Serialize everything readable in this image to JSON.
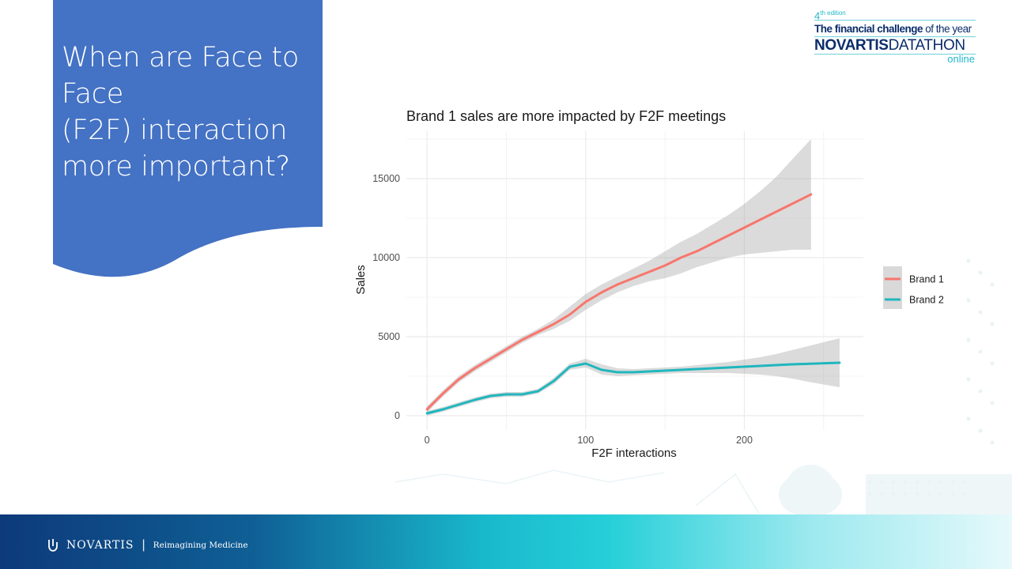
{
  "slide": {
    "title": "When are Face to\nFace\n(F2F)  interaction\nmore important?",
    "banner_color": "#4472c4"
  },
  "logo": {
    "edition": "4",
    "edition_suffix": "th edition",
    "tagline_bold": "The financial challenge",
    "tagline_rest": " of the year",
    "brand_bold": "NOVARTIS",
    "brand_rest": "DATATHON",
    "online": "online"
  },
  "footer": {
    "company": "NOVARTIS",
    "slogan": "Reimagining Medicine"
  },
  "chart_data": {
    "type": "line",
    "title": "Brand 1 sales are more impacted by F2F meetings",
    "xlabel": "F2F interactions",
    "ylabel": "Sales",
    "xlim": [
      -13,
      275
    ],
    "ylim": [
      -900,
      18000
    ],
    "x_ticks": [
      0,
      100,
      200
    ],
    "y_ticks": [
      0,
      5000,
      10000,
      15000
    ],
    "grid": true,
    "legend_position": "right",
    "series": [
      {
        "name": "Brand 1",
        "color": "#f8766d",
        "points": [
          [
            0,
            400
          ],
          [
            10,
            1400
          ],
          [
            20,
            2300
          ],
          [
            30,
            3000
          ],
          [
            40,
            3600
          ],
          [
            50,
            4200
          ],
          [
            60,
            4800
          ],
          [
            70,
            5300
          ],
          [
            80,
            5800
          ],
          [
            90,
            6400
          ],
          [
            100,
            7200
          ],
          [
            110,
            7800
          ],
          [
            120,
            8300
          ],
          [
            130,
            8700
          ],
          [
            140,
            9100
          ],
          [
            150,
            9500
          ],
          [
            160,
            10000
          ],
          [
            170,
            10400
          ],
          [
            180,
            10900
          ],
          [
            190,
            11400
          ],
          [
            200,
            11900
          ],
          [
            210,
            12400
          ],
          [
            220,
            12900
          ],
          [
            230,
            13400
          ],
          [
            242,
            14000
          ]
        ],
        "band_upper": [
          [
            0,
            600
          ],
          [
            10,
            1600
          ],
          [
            20,
            2500
          ],
          [
            30,
            3200
          ],
          [
            40,
            3800
          ],
          [
            50,
            4400
          ],
          [
            60,
            5000
          ],
          [
            70,
            5500
          ],
          [
            80,
            6100
          ],
          [
            90,
            6900
          ],
          [
            100,
            7700
          ],
          [
            110,
            8300
          ],
          [
            120,
            8800
          ],
          [
            130,
            9300
          ],
          [
            140,
            9800
          ],
          [
            150,
            10400
          ],
          [
            160,
            11000
          ],
          [
            170,
            11500
          ],
          [
            180,
            12100
          ],
          [
            190,
            12700
          ],
          [
            200,
            13400
          ],
          [
            210,
            14200
          ],
          [
            220,
            15100
          ],
          [
            230,
            16200
          ],
          [
            242,
            17500
          ]
        ],
        "band_lower": [
          [
            0,
            200
          ],
          [
            10,
            1200
          ],
          [
            20,
            2100
          ],
          [
            30,
            2800
          ],
          [
            40,
            3400
          ],
          [
            50,
            4000
          ],
          [
            60,
            4600
          ],
          [
            70,
            5100
          ],
          [
            80,
            5500
          ],
          [
            90,
            6000
          ],
          [
            100,
            6700
          ],
          [
            110,
            7300
          ],
          [
            120,
            7800
          ],
          [
            130,
            8200
          ],
          [
            140,
            8500
          ],
          [
            150,
            8700
          ],
          [
            160,
            9000
          ],
          [
            170,
            9400
          ],
          [
            180,
            9700
          ],
          [
            190,
            10000
          ],
          [
            200,
            10200
          ],
          [
            210,
            10300
          ],
          [
            220,
            10400
          ],
          [
            230,
            10500
          ],
          [
            242,
            10500
          ]
        ]
      },
      {
        "name": "Brand 2",
        "color": "#20b6bd",
        "points": [
          [
            0,
            150
          ],
          [
            10,
            400
          ],
          [
            20,
            700
          ],
          [
            30,
            1000
          ],
          [
            40,
            1250
          ],
          [
            50,
            1350
          ],
          [
            60,
            1350
          ],
          [
            70,
            1550
          ],
          [
            80,
            2200
          ],
          [
            90,
            3100
          ],
          [
            100,
            3300
          ],
          [
            110,
            2900
          ],
          [
            120,
            2750
          ],
          [
            130,
            2750
          ],
          [
            140,
            2800
          ],
          [
            150,
            2850
          ],
          [
            160,
            2900
          ],
          [
            170,
            2950
          ],
          [
            180,
            3000
          ],
          [
            190,
            3050
          ],
          [
            200,
            3100
          ],
          [
            210,
            3150
          ],
          [
            220,
            3200
          ],
          [
            230,
            3250
          ],
          [
            240,
            3280
          ],
          [
            260,
            3350
          ]
        ],
        "band_upper": [
          [
            0,
            300
          ],
          [
            10,
            550
          ],
          [
            20,
            850
          ],
          [
            30,
            1150
          ],
          [
            40,
            1400
          ],
          [
            50,
            1500
          ],
          [
            60,
            1500
          ],
          [
            70,
            1700
          ],
          [
            80,
            2400
          ],
          [
            90,
            3300
          ],
          [
            100,
            3600
          ],
          [
            110,
            3250
          ],
          [
            120,
            3000
          ],
          [
            130,
            2950
          ],
          [
            140,
            3000
          ],
          [
            150,
            3050
          ],
          [
            160,
            3100
          ],
          [
            170,
            3200
          ],
          [
            180,
            3300
          ],
          [
            190,
            3400
          ],
          [
            200,
            3550
          ],
          [
            210,
            3700
          ],
          [
            220,
            3900
          ],
          [
            230,
            4150
          ],
          [
            240,
            4400
          ],
          [
            260,
            4900
          ]
        ],
        "band_lower": [
          [
            0,
            0
          ],
          [
            10,
            250
          ],
          [
            20,
            550
          ],
          [
            30,
            850
          ],
          [
            40,
            1100
          ],
          [
            50,
            1200
          ],
          [
            60,
            1200
          ],
          [
            70,
            1400
          ],
          [
            80,
            2000
          ],
          [
            90,
            2900
          ],
          [
            100,
            3050
          ],
          [
            110,
            2600
          ],
          [
            120,
            2500
          ],
          [
            130,
            2550
          ],
          [
            140,
            2600
          ],
          [
            150,
            2650
          ],
          [
            160,
            2700
          ],
          [
            170,
            2700
          ],
          [
            180,
            2700
          ],
          [
            190,
            2700
          ],
          [
            200,
            2650
          ],
          [
            210,
            2600
          ],
          [
            220,
            2500
          ],
          [
            230,
            2350
          ],
          [
            240,
            2150
          ],
          [
            260,
            1800
          ]
        ]
      }
    ]
  }
}
